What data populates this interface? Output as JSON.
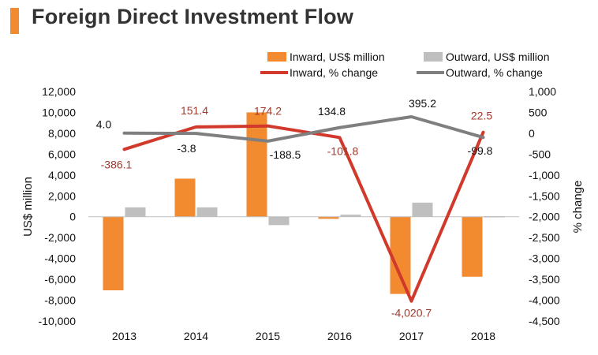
{
  "page": {
    "title": "Foreign Direct Investment Flow",
    "accent_color": "#F28A30"
  },
  "chart_data": {
    "type": "bar",
    "title": "Foreign Direct Investment Flow",
    "categories": [
      "2013",
      "2014",
      "2015",
      "2016",
      "2017",
      "2018"
    ],
    "series": [
      {
        "name": "Inward, US$ million",
        "kind": "bar",
        "axis": "left",
        "color": "#F28A30",
        "values": [
          -7050,
          3650,
          10000,
          -200,
          -7400,
          -5750
        ]
      },
      {
        "name": "Outward, US$ million",
        "kind": "bar",
        "axis": "left",
        "color": "#BFBFBF",
        "values": [
          900,
          900,
          -800,
          200,
          1350,
          50
        ]
      },
      {
        "name": "Inward, % change",
        "kind": "line",
        "axis": "right",
        "color": "#D0392B",
        "values": [
          -386.1,
          151.4,
          174.2,
          -101.8,
          -4020.7,
          22.5
        ],
        "labels": [
          "-386.1",
          "151.4",
          "174.2",
          "-101.8",
          "-4,020.7",
          "22.5"
        ]
      },
      {
        "name": "Outward, % change",
        "kind": "line",
        "axis": "right",
        "color": "#7F7F7F",
        "values": [
          4.0,
          -3.8,
          -188.5,
          134.8,
          395.2,
          -99.8
        ],
        "labels": [
          "4.0",
          "-3.8",
          "-188.5",
          "134.8",
          "395.2",
          "-99.8"
        ]
      }
    ],
    "ylabel": "US$ million",
    "y2label": "% change",
    "ylim": [
      -10000,
      12000
    ],
    "y2lim": [
      -4500,
      1000
    ],
    "yticks": [
      "12,000",
      "10,000",
      "8,000",
      "6,000",
      "4,000",
      "2,000",
      "0",
      "-2,000",
      "-4,000",
      "-6,000",
      "-8,000",
      "-10,000"
    ],
    "y2ticks": [
      "1,000",
      "500",
      "0",
      "-500",
      "-1,000",
      "-1,500",
      "-2,000",
      "-2,500",
      "-3,000",
      "-3,500",
      "-4,000",
      "-4,500"
    ],
    "legend": [
      "Inward, US$ million",
      "Outward, US$ million",
      "Inward, % change",
      "Outward, % change"
    ],
    "grid": false,
    "legend_position": "top"
  }
}
